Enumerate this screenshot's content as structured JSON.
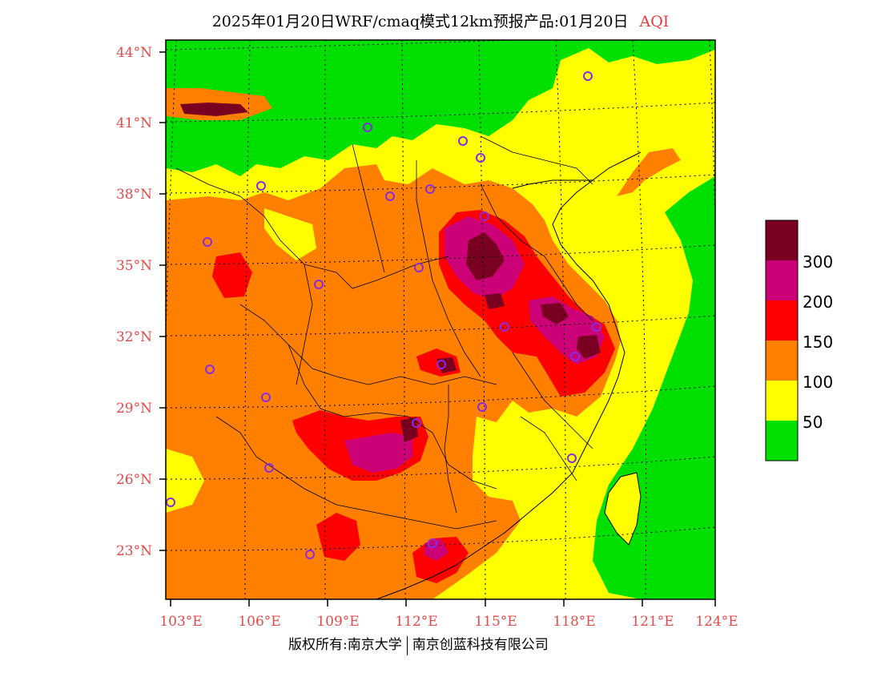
{
  "title": {
    "main": "2025年01月20日WRF/cmaq模式12km预报产品:01月20日",
    "variable": "AQI"
  },
  "axes": {
    "lat_labels": [
      "44°N",
      "41°N",
      "38°N",
      "35°N",
      "32°N",
      "29°N",
      "26°N",
      "23°N"
    ],
    "lon_labels": [
      "103°E",
      "106°E",
      "109°E",
      "112°E",
      "115°E",
      "118°E",
      "121°E",
      "124°E"
    ]
  },
  "legend": {
    "colors": [
      "#00e000",
      "#ffff00",
      "#ff8000",
      "#ff0000",
      "#cc0077",
      "#7a0022"
    ],
    "labels": [
      "50",
      "100",
      "150",
      "200",
      "300"
    ]
  },
  "credit": {
    "left": "版权所有:南京大学",
    "right": "南京创蓝科技有限公司"
  }
}
